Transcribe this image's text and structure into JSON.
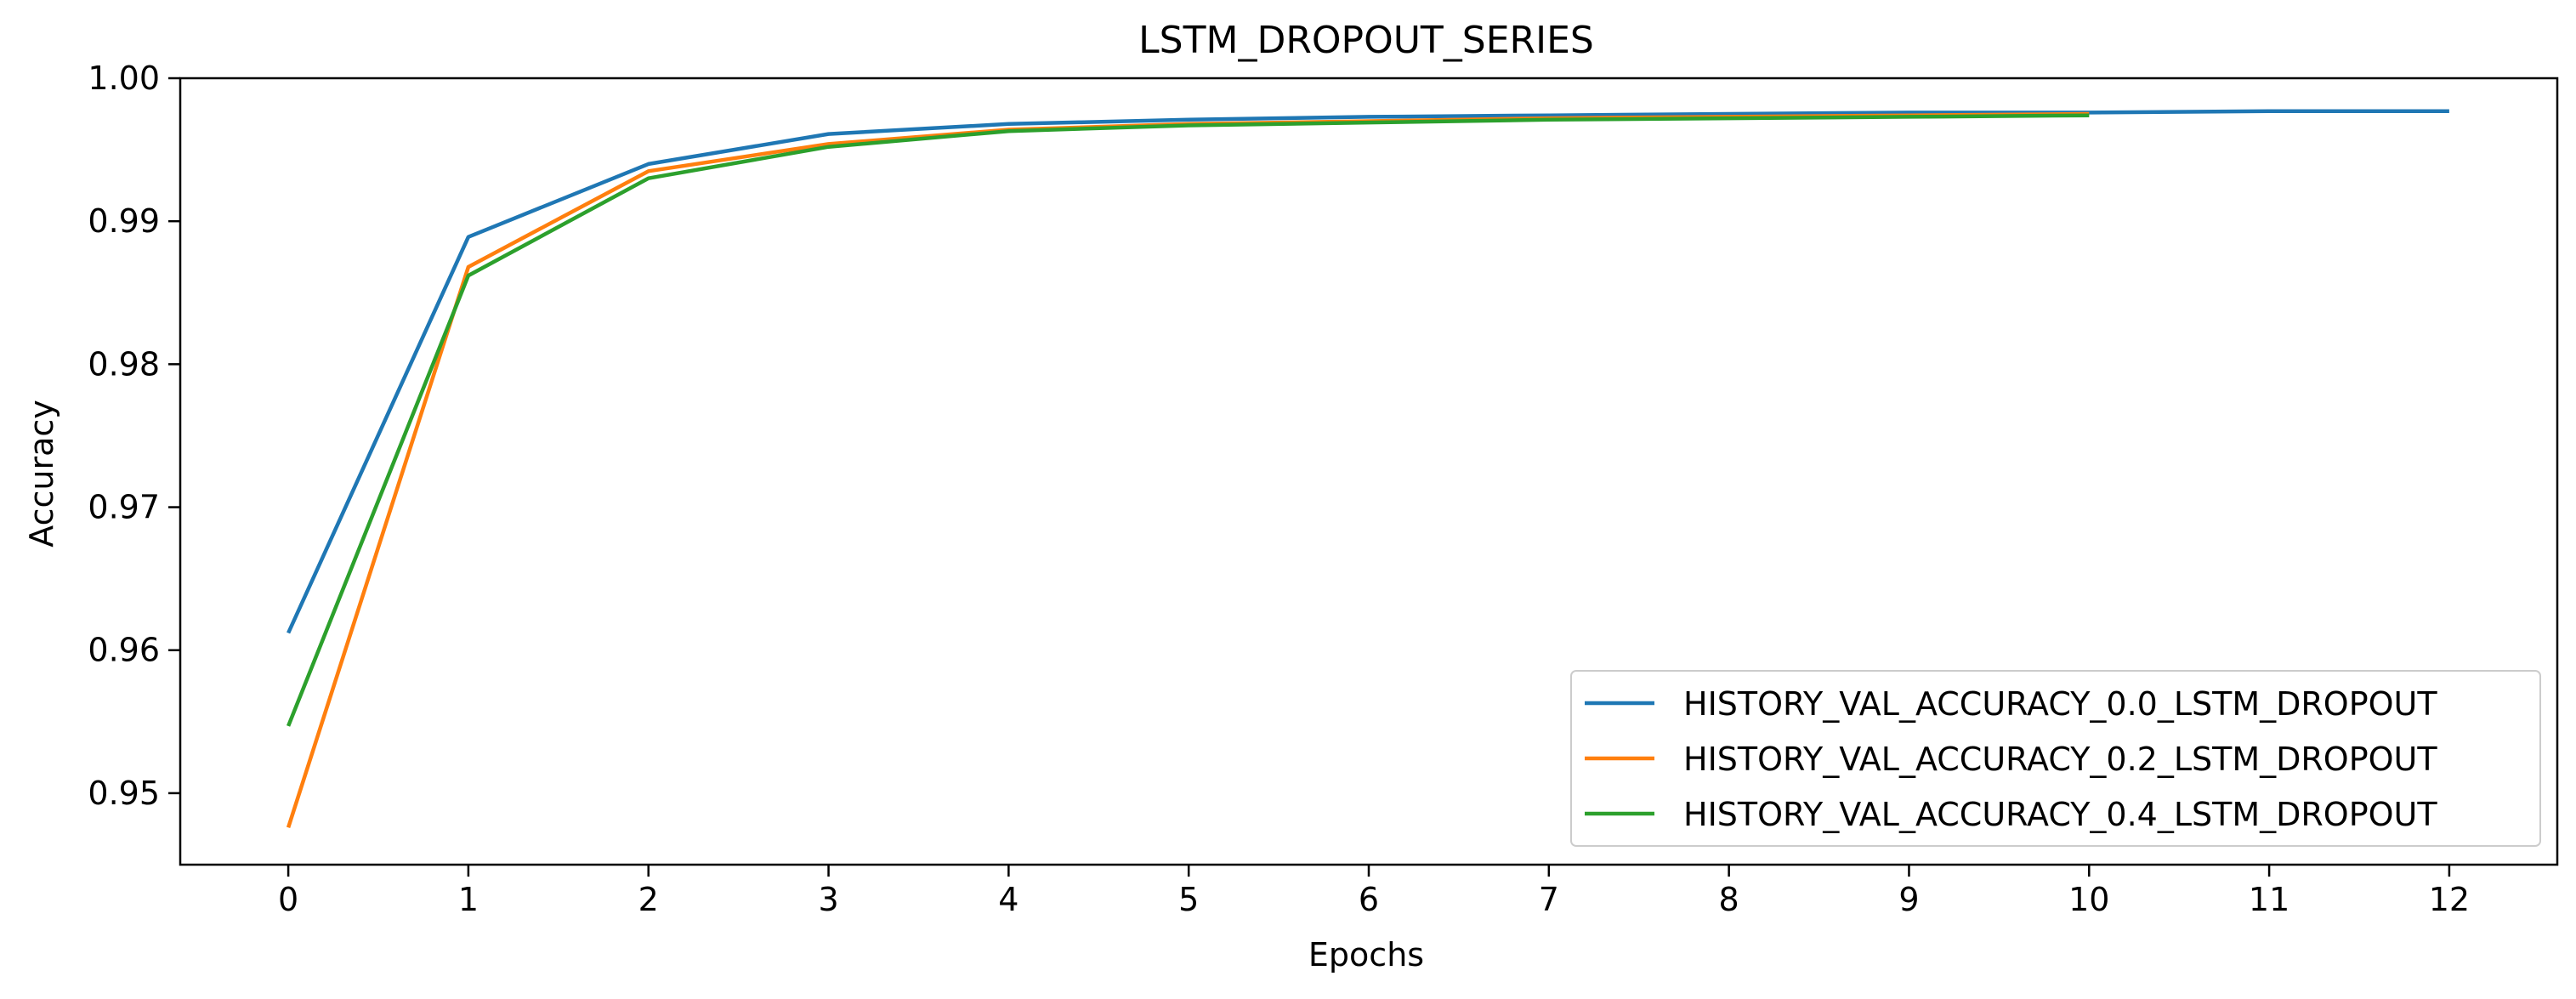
{
  "chart_data": {
    "type": "line",
    "title": "LSTM_DROPOUT_SERIES",
    "xlabel": "Epochs",
    "ylabel": "Accuracy",
    "xlim": [
      -0.6,
      12.6
    ],
    "ylim": [
      0.945,
      1.0
    ],
    "xticks": [
      0,
      1,
      2,
      3,
      4,
      5,
      6,
      7,
      8,
      9,
      10,
      11,
      12
    ],
    "yticks": [
      0.95,
      0.96,
      0.97,
      0.98,
      0.99,
      1.0
    ],
    "ytick_labels": [
      "0.95",
      "0.96",
      "0.97",
      "0.98",
      "0.99",
      "1.00"
    ],
    "legend_position": "lower-right",
    "grid": false,
    "series": [
      {
        "name": "HISTORY_VAL_ACCURACY_0.0_LSTM_DROPOUT",
        "color": "#1f77b4",
        "x": [
          0,
          1,
          2,
          3,
          4,
          5,
          6,
          7,
          8,
          9,
          10,
          11,
          12
        ],
        "y": [
          0.9612,
          0.9889,
          0.994,
          0.9961,
          0.9968,
          0.9971,
          0.9973,
          0.9974,
          0.9975,
          0.9976,
          0.9976,
          0.9977,
          0.9977
        ]
      },
      {
        "name": "HISTORY_VAL_ACCURACY_0.2_LSTM_DROPOUT",
        "color": "#ff7f0e",
        "x": [
          0,
          1,
          2,
          3,
          4,
          5,
          6,
          7,
          8,
          9,
          10
        ],
        "y": [
          0.9476,
          0.9868,
          0.9935,
          0.9954,
          0.9964,
          0.9968,
          0.997,
          0.9972,
          0.9973,
          0.9974,
          0.9975
        ]
      },
      {
        "name": "HISTORY_VAL_ACCURACY_0.4_LSTM_DROPOUT",
        "color": "#2ca02c",
        "x": [
          0,
          1,
          2,
          3,
          4,
          5,
          6,
          7,
          8,
          9,
          10
        ],
        "y": [
          0.9547,
          0.9862,
          0.993,
          0.9952,
          0.9963,
          0.9967,
          0.9969,
          0.9971,
          0.9972,
          0.9973,
          0.9974
        ]
      }
    ]
  }
}
